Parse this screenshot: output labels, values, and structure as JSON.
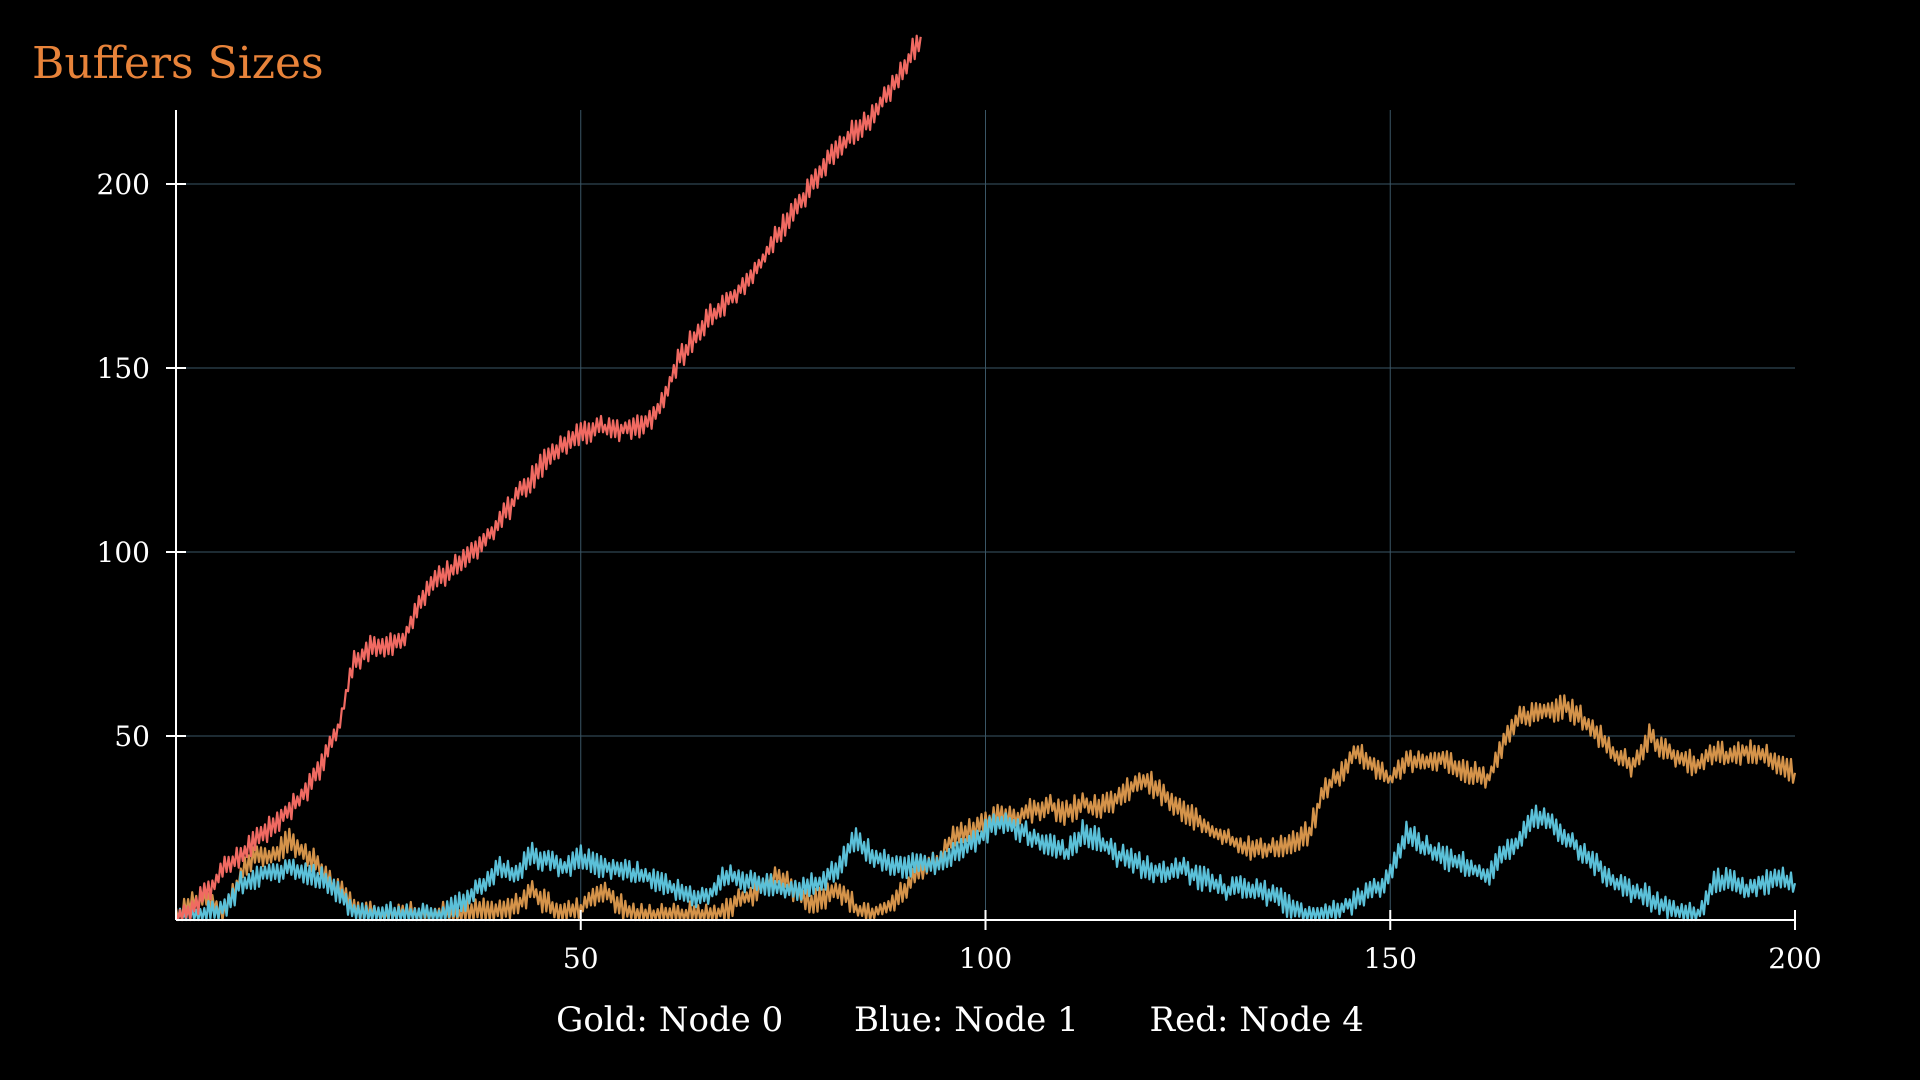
{
  "chart_data": {
    "type": "line",
    "title": "Buffers Sizes",
    "xlabel": "",
    "ylabel": "",
    "xlim": [
      0,
      200
    ],
    "ylim": [
      0,
      220
    ],
    "x_ticks": [
      50,
      100,
      150,
      200
    ],
    "y_ticks": [
      50,
      100,
      150,
      200
    ],
    "grid": true,
    "legend_position": "bottom",
    "legend_text": [
      "Gold: Node 0",
      "Blue: Node 1",
      "Red: Node 4"
    ],
    "series": [
      {
        "name": "Node 0",
        "color": "#d4934a",
        "points": [
          [
            0,
            0
          ],
          [
            2,
            5
          ],
          [
            4,
            6
          ],
          [
            6,
            2
          ],
          [
            8,
            12
          ],
          [
            10,
            18
          ],
          [
            12,
            17
          ],
          [
            14,
            22
          ],
          [
            16,
            18
          ],
          [
            18,
            14
          ],
          [
            20,
            8
          ],
          [
            22,
            4
          ],
          [
            24,
            2
          ],
          [
            26,
            1
          ],
          [
            28,
            2
          ],
          [
            30,
            1
          ],
          [
            32,
            2
          ],
          [
            34,
            1
          ],
          [
            36,
            2
          ],
          [
            38,
            3
          ],
          [
            40,
            2
          ],
          [
            42,
            4
          ],
          [
            44,
            8
          ],
          [
            46,
            4
          ],
          [
            48,
            2
          ],
          [
            50,
            3
          ],
          [
            52,
            8
          ],
          [
            54,
            6
          ],
          [
            56,
            2
          ],
          [
            58,
            1
          ],
          [
            60,
            2
          ],
          [
            62,
            1
          ],
          [
            64,
            2
          ],
          [
            66,
            1
          ],
          [
            68,
            3
          ],
          [
            70,
            6
          ],
          [
            72,
            8
          ],
          [
            74,
            12
          ],
          [
            76,
            9
          ],
          [
            78,
            5
          ],
          [
            80,
            6
          ],
          [
            82,
            8
          ],
          [
            84,
            3
          ],
          [
            86,
            2
          ],
          [
            88,
            4
          ],
          [
            90,
            8
          ],
          [
            92,
            14
          ],
          [
            94,
            16
          ],
          [
            96,
            22
          ],
          [
            98,
            24
          ],
          [
            100,
            26
          ],
          [
            102,
            29
          ],
          [
            104,
            28
          ],
          [
            106,
            30
          ],
          [
            108,
            31
          ],
          [
            110,
            29
          ],
          [
            112,
            32
          ],
          [
            114,
            30
          ],
          [
            116,
            33
          ],
          [
            118,
            36
          ],
          [
            120,
            38
          ],
          [
            122,
            34
          ],
          [
            124,
            30
          ],
          [
            126,
            27
          ],
          [
            128,
            24
          ],
          [
            130,
            22
          ],
          [
            132,
            20
          ],
          [
            134,
            19
          ],
          [
            136,
            20
          ],
          [
            138,
            21
          ],
          [
            140,
            24
          ],
          [
            142,
            36
          ],
          [
            144,
            40
          ],
          [
            146,
            46
          ],
          [
            148,
            42
          ],
          [
            150,
            38
          ],
          [
            152,
            44
          ],
          [
            154,
            42
          ],
          [
            156,
            44
          ],
          [
            158,
            42
          ],
          [
            160,
            40
          ],
          [
            162,
            38
          ],
          [
            164,
            48
          ],
          [
            166,
            55
          ],
          [
            168,
            56
          ],
          [
            170,
            57
          ],
          [
            172,
            58
          ],
          [
            174,
            54
          ],
          [
            176,
            50
          ],
          [
            178,
            44
          ],
          [
            180,
            42
          ],
          [
            182,
            50
          ],
          [
            184,
            46
          ],
          [
            186,
            44
          ],
          [
            188,
            42
          ],
          [
            190,
            46
          ],
          [
            192,
            44
          ],
          [
            194,
            46
          ],
          [
            196,
            45
          ],
          [
            198,
            43
          ],
          [
            200,
            40
          ]
        ]
      },
      {
        "name": "Node 1",
        "color": "#5bc0d8",
        "points": [
          [
            0,
            0
          ],
          [
            2,
            1
          ],
          [
            4,
            2
          ],
          [
            6,
            3
          ],
          [
            8,
            10
          ],
          [
            10,
            12
          ],
          [
            12,
            13
          ],
          [
            14,
            14
          ],
          [
            16,
            13
          ],
          [
            18,
            11
          ],
          [
            20,
            7
          ],
          [
            22,
            3
          ],
          [
            24,
            1
          ],
          [
            26,
            2
          ],
          [
            28,
            1
          ],
          [
            30,
            2
          ],
          [
            32,
            1
          ],
          [
            34,
            3
          ],
          [
            36,
            6
          ],
          [
            38,
            10
          ],
          [
            40,
            14
          ],
          [
            42,
            12
          ],
          [
            44,
            18
          ],
          [
            46,
            16
          ],
          [
            48,
            14
          ],
          [
            50,
            17
          ],
          [
            52,
            15
          ],
          [
            54,
            14
          ],
          [
            56,
            13
          ],
          [
            58,
            12
          ],
          [
            60,
            10
          ],
          [
            62,
            8
          ],
          [
            64,
            5
          ],
          [
            66,
            7
          ],
          [
            68,
            12
          ],
          [
            70,
            11
          ],
          [
            72,
            10
          ],
          [
            74,
            9
          ],
          [
            76,
            8
          ],
          [
            78,
            9
          ],
          [
            80,
            11
          ],
          [
            82,
            15
          ],
          [
            84,
            22
          ],
          [
            86,
            18
          ],
          [
            88,
            15
          ],
          [
            90,
            14
          ],
          [
            92,
            16
          ],
          [
            94,
            15
          ],
          [
            96,
            18
          ],
          [
            98,
            20
          ],
          [
            100,
            24
          ],
          [
            102,
            27
          ],
          [
            104,
            25
          ],
          [
            106,
            22
          ],
          [
            108,
            20
          ],
          [
            110,
            18
          ],
          [
            112,
            24
          ],
          [
            114,
            22
          ],
          [
            116,
            18
          ],
          [
            118,
            16
          ],
          [
            120,
            14
          ],
          [
            122,
            13
          ],
          [
            124,
            14
          ],
          [
            126,
            12
          ],
          [
            128,
            10
          ],
          [
            130,
            8
          ],
          [
            132,
            9
          ],
          [
            134,
            8
          ],
          [
            136,
            6
          ],
          [
            138,
            3
          ],
          [
            140,
            1
          ],
          [
            142,
            2
          ],
          [
            144,
            3
          ],
          [
            146,
            6
          ],
          [
            148,
            8
          ],
          [
            150,
            12
          ],
          [
            152,
            24
          ],
          [
            154,
            20
          ],
          [
            156,
            18
          ],
          [
            158,
            16
          ],
          [
            160,
            14
          ],
          [
            162,
            12
          ],
          [
            164,
            18
          ],
          [
            166,
            22
          ],
          [
            168,
            28
          ],
          [
            170,
            26
          ],
          [
            172,
            22
          ],
          [
            174,
            18
          ],
          [
            176,
            14
          ],
          [
            178,
            10
          ],
          [
            180,
            8
          ],
          [
            182,
            6
          ],
          [
            184,
            4
          ],
          [
            186,
            2
          ],
          [
            188,
            1
          ],
          [
            190,
            10
          ],
          [
            192,
            12
          ],
          [
            194,
            8
          ],
          [
            196,
            10
          ],
          [
            198,
            11
          ],
          [
            200,
            10
          ]
        ]
      },
      {
        "name": "Node 4",
        "color": "#f06a62",
        "points": [
          [
            0,
            0
          ],
          [
            2,
            3
          ],
          [
            4,
            8
          ],
          [
            6,
            14
          ],
          [
            8,
            18
          ],
          [
            10,
            22
          ],
          [
            12,
            26
          ],
          [
            14,
            30
          ],
          [
            16,
            35
          ],
          [
            18,
            42
          ],
          [
            20,
            52
          ],
          [
            22,
            70
          ],
          [
            24,
            74
          ],
          [
            26,
            74
          ],
          [
            28,
            76
          ],
          [
            30,
            85
          ],
          [
            32,
            92
          ],
          [
            34,
            95
          ],
          [
            36,
            98
          ],
          [
            38,
            103
          ],
          [
            40,
            108
          ],
          [
            42,
            115
          ],
          [
            44,
            120
          ],
          [
            46,
            126
          ],
          [
            48,
            130
          ],
          [
            50,
            132
          ],
          [
            52,
            134
          ],
          [
            54,
            133
          ],
          [
            56,
            134
          ],
          [
            58,
            135
          ],
          [
            60,
            140
          ],
          [
            62,
            152
          ],
          [
            64,
            158
          ],
          [
            66,
            164
          ],
          [
            68,
            168
          ],
          [
            70,
            172
          ],
          [
            72,
            178
          ],
          [
            74,
            185
          ],
          [
            76,
            192
          ],
          [
            78,
            198
          ],
          [
            80,
            205
          ],
          [
            82,
            210
          ],
          [
            84,
            215
          ],
          [
            86,
            218
          ],
          [
            88,
            225
          ],
          [
            90,
            232
          ],
          [
            92,
            240
          ]
        ]
      }
    ]
  }
}
